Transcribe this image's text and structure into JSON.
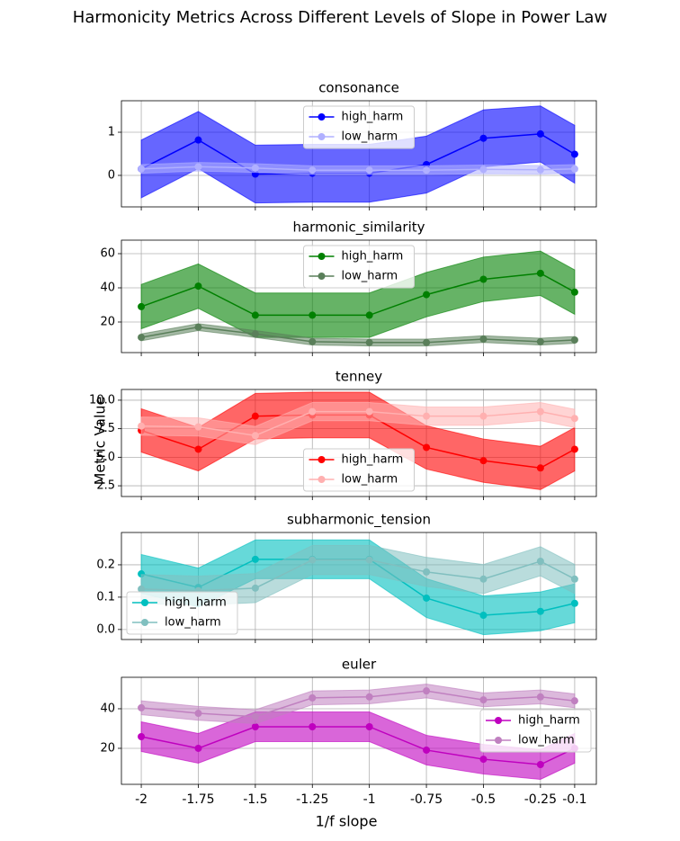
{
  "title": "Harmonicity Metrics Across Different Levels of Slope in Power Law",
  "xlabel": "1/f slope",
  "ylabel": "Metric Value",
  "chart_data": [
    {
      "type": "line",
      "title": "consonance",
      "x": [
        -2,
        -1.75,
        -1.5,
        -1.25,
        -1,
        -0.75,
        -0.5,
        -0.25,
        -0.1
      ],
      "xlim": [
        -2.087,
        -0.005
      ],
      "xticks": [
        -2,
        -1.75,
        -1.5,
        -1.25,
        -1,
        -0.75,
        -0.5,
        -0.25,
        -0.1
      ],
      "ylim": [
        -0.73,
        1.73
      ],
      "yticks": [
        0,
        1
      ],
      "grid": true,
      "legend": "upper center",
      "series": [
        {
          "name": "high_harm",
          "color": "#0000ff",
          "values": [
            0.15,
            0.82,
            0.03,
            0.05,
            0.05,
            0.25,
            0.86,
            0.96,
            0.49
          ],
          "errors": [
            0.67,
            0.66,
            0.67,
            0.67,
            0.67,
            0.66,
            0.66,
            0.65,
            0.67
          ]
        },
        {
          "name": "low_harm",
          "color": "#b0b0ff",
          "values": [
            0.15,
            0.2,
            0.17,
            0.12,
            0.12,
            0.12,
            0.14,
            0.13,
            0.15
          ],
          "errors": [
            0.1,
            0.1,
            0.1,
            0.1,
            0.1,
            0.1,
            0.1,
            0.1,
            0.1
          ]
        }
      ]
    },
    {
      "type": "line",
      "title": "harmonic_similarity",
      "x": [
        -2,
        -1.75,
        -1.5,
        -1.25,
        -1,
        -0.75,
        -0.5,
        -0.25,
        -0.1
      ],
      "xlim": [
        -2.087,
        -0.005
      ],
      "xticks": [
        -2,
        -1.75,
        -1.5,
        -1.25,
        -1,
        -0.75,
        -0.5,
        -0.25,
        -0.1
      ],
      "ylim": [
        2.1,
        67.9
      ],
      "yticks": [
        20,
        40,
        60
      ],
      "grid": true,
      "legend": "upper center",
      "series": [
        {
          "name": "high_harm",
          "color": "#008000",
          "values": [
            29,
            41,
            24,
            24,
            24,
            36,
            45,
            48.5,
            37.5
          ],
          "errors": [
            13,
            13,
            13,
            13,
            13,
            13,
            13,
            13,
            13
          ]
        },
        {
          "name": "low_harm",
          "color": "#5a7f5a",
          "values": [
            11,
            17,
            13,
            8.5,
            8,
            8,
            10,
            8.5,
            9.5
          ],
          "errors": [
            2,
            2,
            2,
            2,
            2,
            2,
            2,
            2,
            2
          ]
        }
      ]
    },
    {
      "type": "line",
      "title": "tenney",
      "x": [
        -2,
        -1.75,
        -1.5,
        -1.25,
        -1,
        -0.75,
        -0.5,
        -0.25,
        -0.1
      ],
      "xlim": [
        -2.087,
        -0.005
      ],
      "xticks": [
        -2,
        -1.75,
        -1.5,
        -1.25,
        -1,
        -0.75,
        -0.5,
        -0.25,
        -0.1
      ],
      "ylim": [
        1.56,
        10.94
      ],
      "yticks": [
        2.5,
        {
          "value": 5,
          "label": "5.0"
        },
        7.5,
        {
          "value": 10,
          "label": "10.0"
        }
      ],
      "grid": true,
      "legend": "lower center",
      "series": [
        {
          "name": "high_harm",
          "color": "#ff0000",
          "values": [
            7.35,
            5.7,
            8.6,
            8.7,
            8.7,
            5.86,
            4.7,
            4.06,
            5.7
          ],
          "errors": [
            1.9,
            1.9,
            2,
            2,
            2,
            1.9,
            1.9,
            1.9,
            1.9
          ]
        },
        {
          "name": "low_harm",
          "color": "#ffb0b0",
          "values": [
            7.73,
            7.66,
            6.9,
            9,
            9,
            8.6,
            8.6,
            9,
            8.4
          ],
          "errors": [
            0.8,
            0.8,
            0.8,
            0.8,
            0.8,
            0.8,
            0.8,
            0.8,
            0.8
          ]
        }
      ]
    },
    {
      "type": "line",
      "title": "subharmonic_tension",
      "x": [
        -2,
        -1.75,
        -1.5,
        -1.25,
        -1,
        -0.75,
        -0.5,
        -0.25,
        -0.1
      ],
      "xlim": [
        -2.087,
        -0.005
      ],
      "xticks": [
        -2,
        -1.75,
        -1.5,
        -1.25,
        -1,
        -0.75,
        -0.5,
        -0.25,
        -0.1
      ],
      "ylim": [
        -0.031,
        0.3
      ],
      "yticks": [
        {
          "value": 0,
          "label": "0.0"
        },
        0.1,
        0.2
      ],
      "grid": true,
      "legend": "lower left",
      "series": [
        {
          "name": "high_harm",
          "color": "#00bfbf",
          "values": [
            0.172,
            0.13,
            0.217,
            0.217,
            0.217,
            0.097,
            0.044,
            0.056,
            0.081
          ],
          "errors": [
            0.06,
            0.06,
            0.06,
            0.06,
            0.06,
            0.06,
            0.06,
            0.06,
            0.06
          ]
        },
        {
          "name": "low_harm",
          "color": "#80bfbf",
          "values": [
            0.125,
            0.12,
            0.128,
            0.215,
            0.215,
            0.178,
            0.156,
            0.211,
            0.156
          ],
          "errors": [
            0.045,
            0.045,
            0.045,
            0.045,
            0.045,
            0.045,
            0.045,
            0.045,
            0.045
          ]
        }
      ]
    },
    {
      "type": "line",
      "title": "euler",
      "x": [
        -2,
        -1.75,
        -1.5,
        -1.25,
        -1,
        -0.75,
        -0.5,
        -0.25,
        -0.1
      ],
      "xlim": [
        -2.087,
        -0.005
      ],
      "xticks": [
        -2,
        -1.75,
        -1.5,
        -1.25,
        -1,
        -0.75,
        -0.5,
        -0.25,
        -0.1
      ],
      "ylim": [
        1.8,
        55.9
      ],
      "yticks": [
        20,
        40
      ],
      "grid": true,
      "legend": "center right",
      "series": [
        {
          "name": "high_harm",
          "color": "#bf00bf",
          "values": [
            25.9,
            20,
            30.9,
            30.9,
            30.9,
            19.1,
            14.5,
            11.8,
            20
          ],
          "errors": [
            7.5,
            7.5,
            7.5,
            7.5,
            7.5,
            7.5,
            7.5,
            7.5,
            7.5
          ]
        },
        {
          "name": "low_harm",
          "color": "#c080c0",
          "values": [
            40.5,
            37.7,
            36,
            45.5,
            46,
            49,
            44.5,
            46,
            44
          ],
          "errors": [
            3.5,
            3.5,
            3.5,
            3.5,
            3.5,
            3.5,
            3.5,
            3.5,
            3.5
          ]
        }
      ]
    }
  ]
}
